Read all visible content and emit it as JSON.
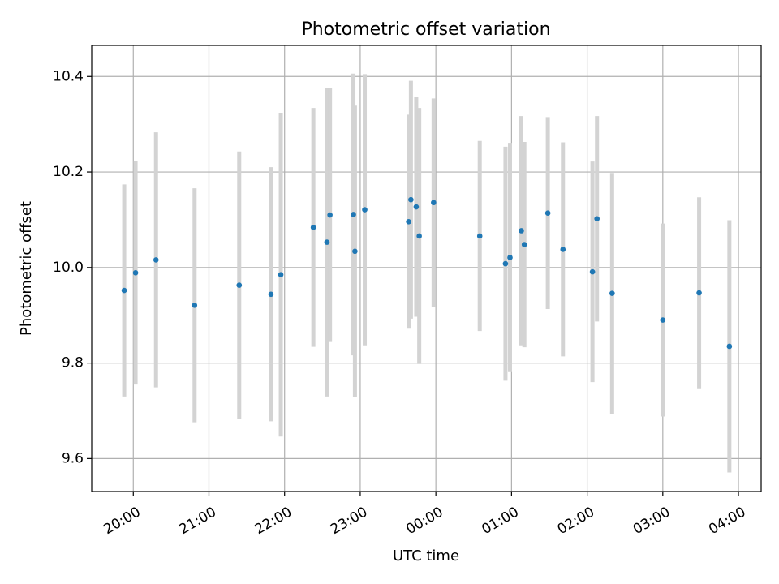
{
  "chart_data": {
    "type": "scatter",
    "title": "Photometric offset variation",
    "xlabel": "UTC time",
    "ylabel": "Photometric offset",
    "x_unit": "hours",
    "xlim": [
      19.45,
      28.3
    ],
    "ylim": [
      9.531,
      10.465
    ],
    "xticks": [
      {
        "value": 20,
        "label": "20:00"
      },
      {
        "value": 21,
        "label": "21:00"
      },
      {
        "value": 22,
        "label": "22:00"
      },
      {
        "value": 23,
        "label": "23:00"
      },
      {
        "value": 24,
        "label": "00:00"
      },
      {
        "value": 25,
        "label": "01:00"
      },
      {
        "value": 26,
        "label": "02:00"
      },
      {
        "value": 27,
        "label": "03:00"
      },
      {
        "value": 28,
        "label": "04:00"
      }
    ],
    "yticks": [
      {
        "value": 9.6,
        "label": "9.6"
      },
      {
        "value": 9.8,
        "label": "9.8"
      },
      {
        "value": 10.0,
        "label": "10.0"
      },
      {
        "value": 10.2,
        "label": "10.2"
      },
      {
        "value": 10.4,
        "label": "10.4"
      }
    ],
    "grid": true,
    "legend": "none",
    "colors": {
      "marker": "#1f77b4",
      "errorbar": "#d3d3d3",
      "grid": "#b0b0b0"
    },
    "points": [
      {
        "x": 19.88,
        "y": 9.952,
        "err": 0.222
      },
      {
        "x": 20.03,
        "y": 9.989,
        "err": 0.234
      },
      {
        "x": 20.3,
        "y": 10.016,
        "err": 0.267
      },
      {
        "x": 20.81,
        "y": 9.921,
        "err": 0.245
      },
      {
        "x": 21.4,
        "y": 9.963,
        "err": 0.28
      },
      {
        "x": 21.82,
        "y": 9.944,
        "err": 0.266
      },
      {
        "x": 21.95,
        "y": 9.985,
        "err": 0.339
      },
      {
        "x": 22.38,
        "y": 10.084,
        "err": 0.25
      },
      {
        "x": 22.56,
        "y": 10.053,
        "err": 0.323
      },
      {
        "x": 22.6,
        "y": 10.11,
        "err": 0.266
      },
      {
        "x": 22.91,
        "y": 10.111,
        "err": 0.295
      },
      {
        "x": 22.93,
        "y": 10.034,
        "err": 0.305
      },
      {
        "x": 23.06,
        "y": 10.121,
        "err": 0.284
      },
      {
        "x": 23.64,
        "y": 10.096,
        "err": 0.224
      },
      {
        "x": 23.67,
        "y": 10.142,
        "err": 0.249
      },
      {
        "x": 23.74,
        "y": 10.127,
        "err": 0.23
      },
      {
        "x": 23.78,
        "y": 10.066,
        "err": 0.268
      },
      {
        "x": 23.97,
        "y": 10.136,
        "err": 0.218
      },
      {
        "x": 24.58,
        "y": 10.066,
        "err": 0.199
      },
      {
        "x": 24.92,
        "y": 10.008,
        "err": 0.245
      },
      {
        "x": 24.98,
        "y": 10.021,
        "err": 0.24
      },
      {
        "x": 25.13,
        "y": 10.077,
        "err": 0.24
      },
      {
        "x": 25.17,
        "y": 10.048,
        "err": 0.215
      },
      {
        "x": 25.48,
        "y": 10.114,
        "err": 0.201
      },
      {
        "x": 25.68,
        "y": 10.038,
        "err": 0.224
      },
      {
        "x": 26.07,
        "y": 9.991,
        "err": 0.231
      },
      {
        "x": 26.13,
        "y": 10.102,
        "err": 0.215
      },
      {
        "x": 26.33,
        "y": 9.946,
        "err": 0.252
      },
      {
        "x": 27.0,
        "y": 9.89,
        "err": 0.202
      },
      {
        "x": 27.48,
        "y": 9.947,
        "err": 0.2
      },
      {
        "x": 27.88,
        "y": 9.835,
        "err": 0.264
      }
    ]
  }
}
